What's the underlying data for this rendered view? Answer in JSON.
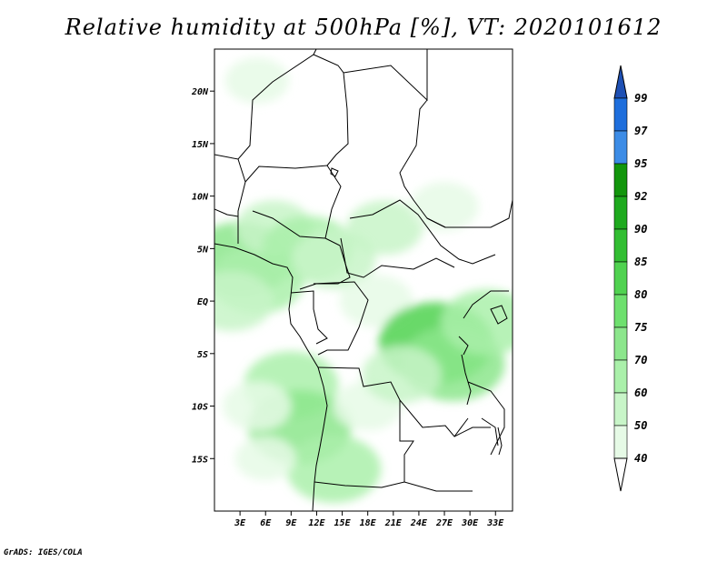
{
  "title": "Relative humidity at 500hPa [%], VT: 2020101612",
  "credit": "GrADS: IGES/COLA",
  "map": {
    "lon_range": [
      0,
      35
    ],
    "lat_range": [
      -20,
      24
    ],
    "lat_ticks": [
      {
        "value": 20,
        "label": "20N"
      },
      {
        "value": 15,
        "label": "15N"
      },
      {
        "value": 10,
        "label": "10N"
      },
      {
        "value": 5,
        "label": "5N"
      },
      {
        "value": 0,
        "label": "EQ"
      },
      {
        "value": -5,
        "label": "5S"
      },
      {
        "value": -10,
        "label": "10S"
      },
      {
        "value": -15,
        "label": "15S"
      }
    ],
    "lon_ticks": [
      {
        "value": 3,
        "label": "3E"
      },
      {
        "value": 6,
        "label": "6E"
      },
      {
        "value": 9,
        "label": "9E"
      },
      {
        "value": 12,
        "label": "12E"
      },
      {
        "value": 15,
        "label": "15E"
      },
      {
        "value": 18,
        "label": "18E"
      },
      {
        "value": 21,
        "label": "21E"
      },
      {
        "value": 24,
        "label": "24E"
      },
      {
        "value": 27,
        "label": "27E"
      },
      {
        "value": 30,
        "label": "30E"
      },
      {
        "value": 33,
        "label": "33E"
      }
    ]
  },
  "colorbar": {
    "levels": [
      {
        "label": "99",
        "color": "#1e6edc"
      },
      {
        "label": "97",
        "color": "#3c8ce6"
      },
      {
        "label": "95",
        "color": "#12960c"
      },
      {
        "label": "92",
        "color": "#1eaa1e"
      },
      {
        "label": "90",
        "color": "#32be32"
      },
      {
        "label": "85",
        "color": "#50d250"
      },
      {
        "label": "80",
        "color": "#6ee06e"
      },
      {
        "label": "75",
        "color": "#8ce68c"
      },
      {
        "label": "70",
        "color": "#aaf0aa"
      },
      {
        "label": "60",
        "color": "#c8f5c8"
      },
      {
        "label": "50",
        "color": "#e6fae6"
      },
      {
        "label": "40",
        "color": "#ffffff"
      }
    ],
    "top_arrow_color": "#1e50b4",
    "bottom_arrow_color": "#ffffff"
  },
  "humidity_field": [
    {
      "lon": 3,
      "lat": 4,
      "rh": 78
    },
    {
      "lon": 5,
      "lat": 2,
      "rh": 72
    },
    {
      "lon": 2,
      "lat": 0,
      "rh": 65
    },
    {
      "lon": 7,
      "lat": 7,
      "rh": 60
    },
    {
      "lon": 11,
      "lat": 5,
      "rh": 70
    },
    {
      "lon": 14,
      "lat": 4,
      "rh": 65
    },
    {
      "lon": 20,
      "lat": 7,
      "rh": 60
    },
    {
      "lon": 27,
      "lat": 9,
      "rh": 55
    },
    {
      "lon": 19,
      "lat": 0,
      "rh": 58
    },
    {
      "lon": 26,
      "lat": -4,
      "rh": 85
    },
    {
      "lon": 28,
      "lat": -6,
      "rh": 78
    },
    {
      "lon": 32,
      "lat": -2,
      "rh": 70
    },
    {
      "lon": 9,
      "lat": -8,
      "rh": 72
    },
    {
      "lon": 10,
      "lat": -12,
      "rh": 78
    },
    {
      "lon": 14,
      "lat": -16,
      "rh": 72
    },
    {
      "lon": 5,
      "lat": -10,
      "rh": 55
    },
    {
      "lon": 18,
      "lat": -10,
      "rh": 55
    },
    {
      "lon": 6,
      "lat": -15,
      "rh": 50
    },
    {
      "lon": 5,
      "lat": 21,
      "rh": 52
    },
    {
      "lon": 22,
      "lat": -7,
      "rh": 62
    }
  ]
}
